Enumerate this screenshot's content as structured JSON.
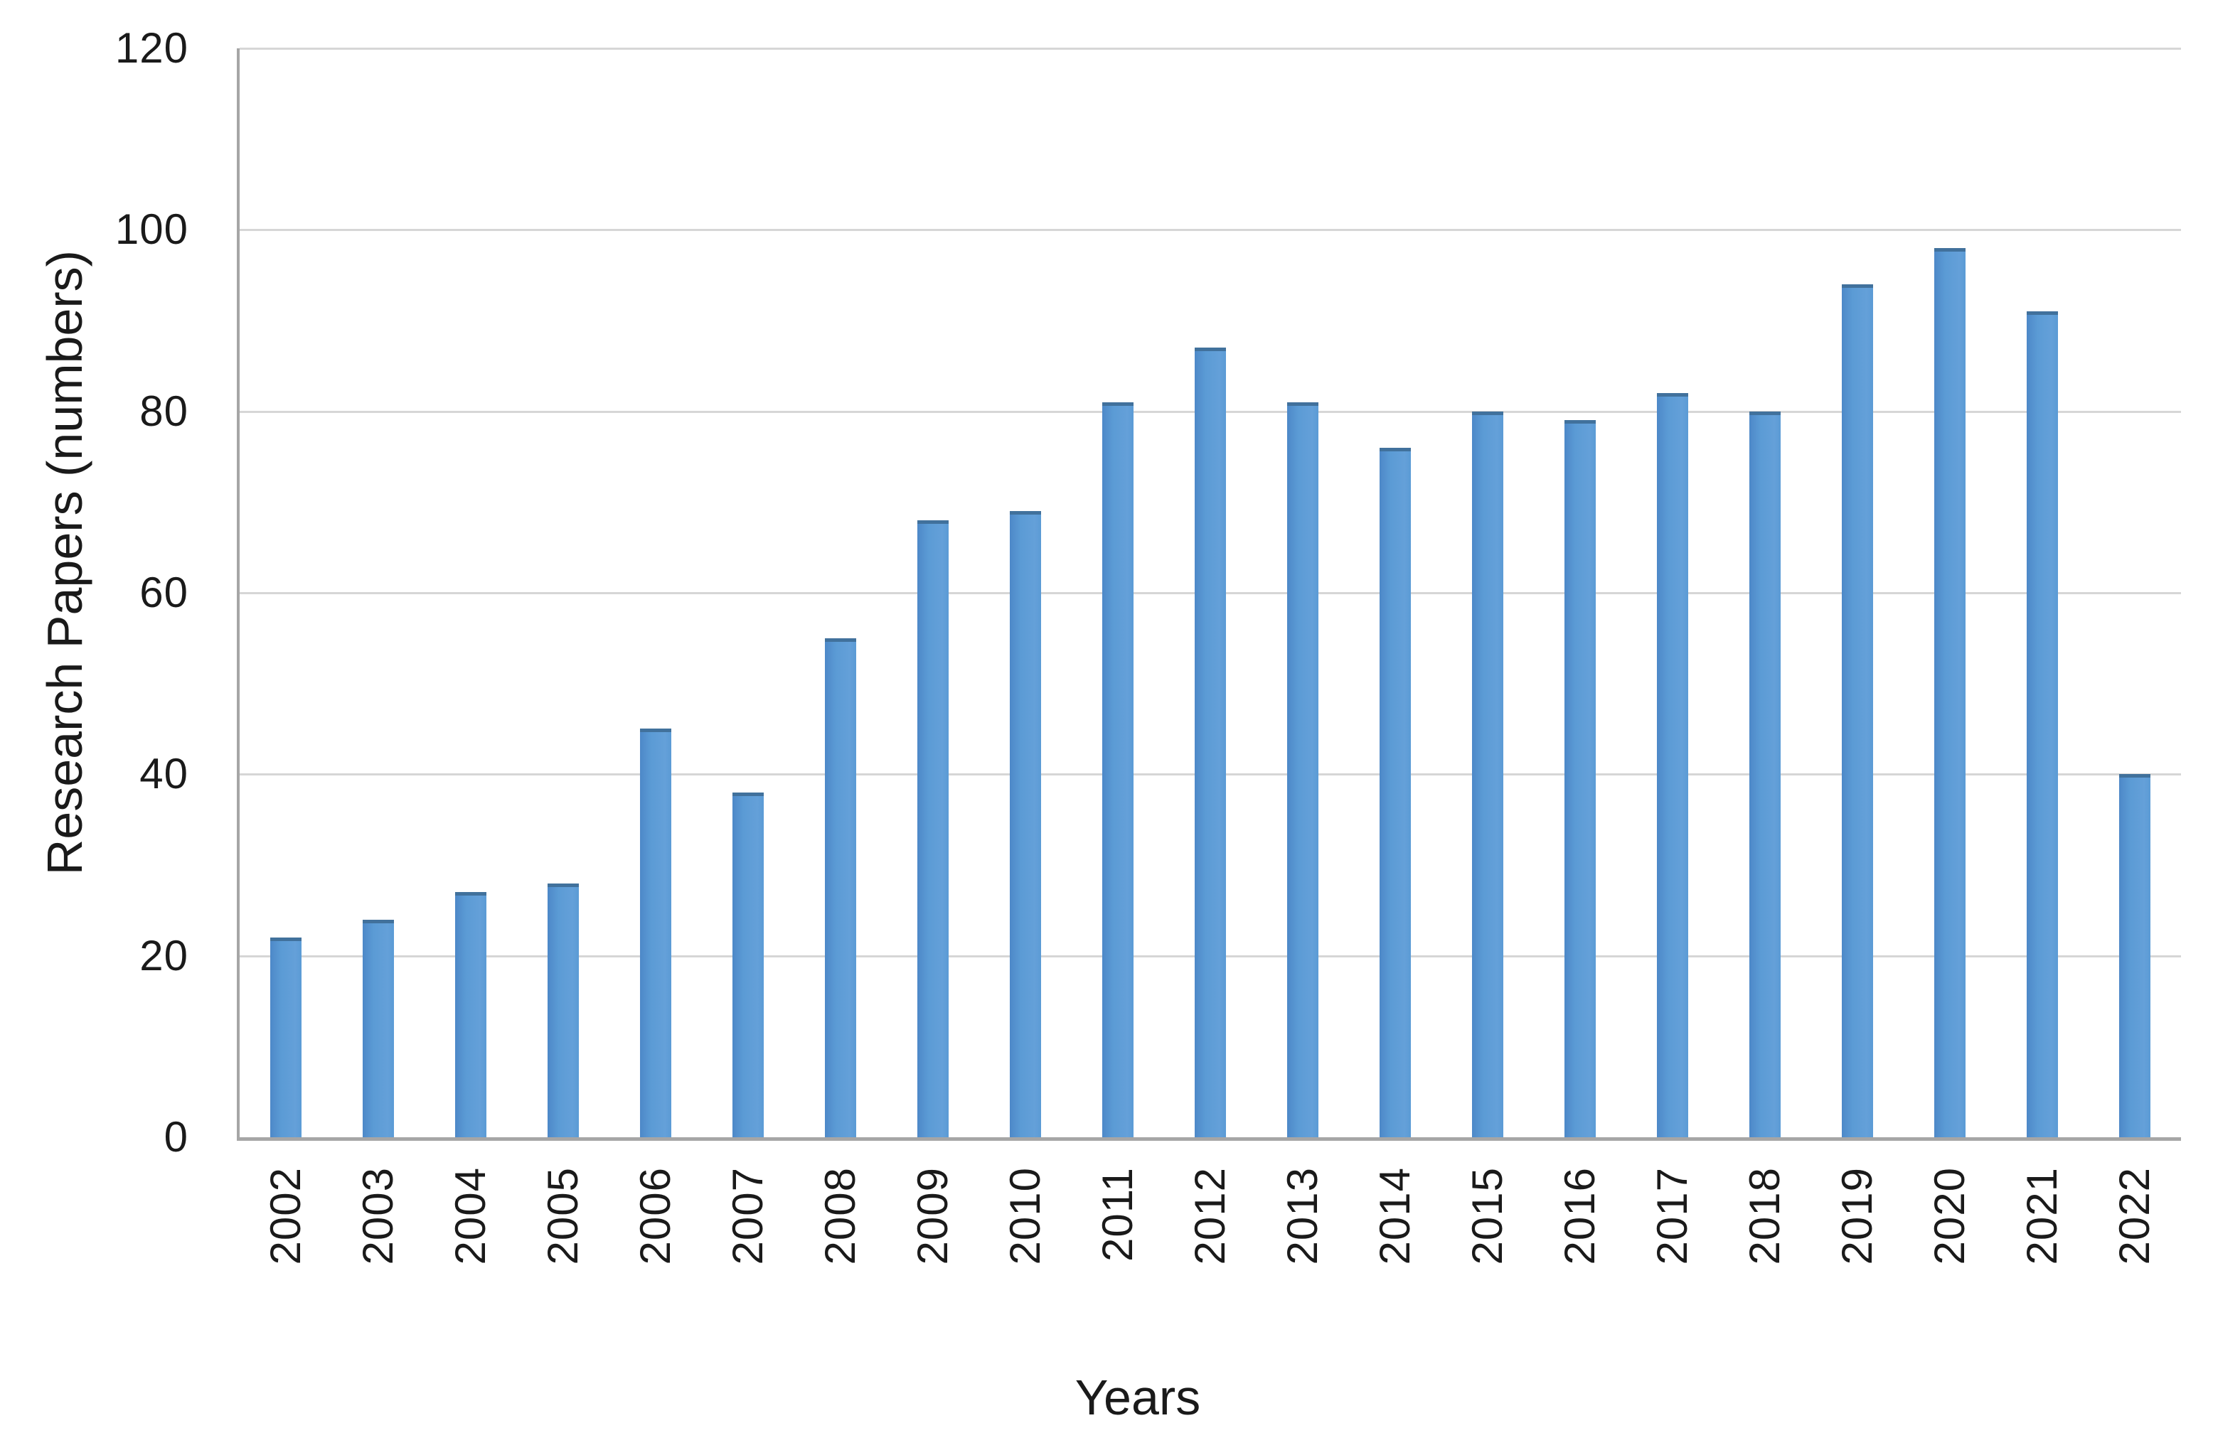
{
  "chart_data": {
    "type": "bar",
    "title": "",
    "xlabel": "Years",
    "ylabel": "Research Papers (numbers)",
    "categories": [
      "2002",
      "2003",
      "2004",
      "2005",
      "2006",
      "2007",
      "2008",
      "2009",
      "2010",
      "2011",
      "2012",
      "2013",
      "2014",
      "2015",
      "2016",
      "2017",
      "2018",
      "2019",
      "2020",
      "2021",
      "2022"
    ],
    "values": [
      22,
      24,
      27,
      28,
      45,
      38,
      55,
      68,
      69,
      81,
      87,
      81,
      76,
      80,
      79,
      82,
      80,
      94,
      98,
      91,
      40
    ],
    "ylim": [
      0,
      120
    ],
    "yticks": [
      0,
      20,
      40,
      60,
      80,
      100,
      120
    ],
    "grid": true,
    "legend": false,
    "colors": {
      "bar_fill": "#5b9bd5",
      "bar_edge": "#41719c",
      "gridline": "#d6d6d6",
      "axis_line": "#a6a6a6",
      "text": "#1a1a1a",
      "background": "#ffffff"
    }
  }
}
